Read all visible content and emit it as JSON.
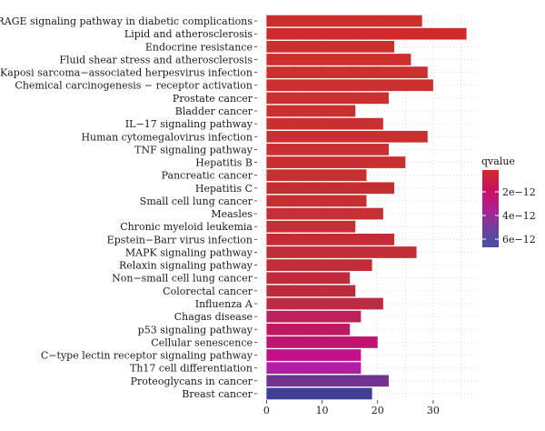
{
  "chart_data": {
    "type": "bar",
    "orientation": "horizontal",
    "categories": [
      "AGE−RAGE signaling pathway in diabetic complications",
      "Lipid and atherosclerosis",
      "Endocrine resistance",
      "Fluid shear stress and atherosclerosis",
      "Kaposi sarcoma−associated herpesvirus infection",
      "Chemical carcinogenesis − receptor activation",
      "Prostate cancer",
      "Bladder cancer",
      "IL−17 signaling pathway",
      "Human cytomegalovirus infection",
      "TNF signaling pathway",
      "Hepatitis B",
      "Pancreatic cancer",
      "Hepatitis C",
      "Small cell lung cancer",
      "Measles",
      "Chronic myeloid leukemia",
      "Epstein−Barr virus infection",
      "MAPK signaling pathway",
      "Relaxin signaling pathway",
      "Non−small cell lung cancer",
      "Colorectal cancer",
      "Influenza A",
      "Chagas disease",
      "p53 signaling pathway",
      "Cellular senescence",
      "C−type lectin receptor signaling pathway",
      "Th17 cell differentiation",
      "Proteoglycans in cancer",
      "Breast cancer"
    ],
    "values": [
      28,
      36,
      23,
      26,
      29,
      30,
      22,
      16,
      21,
      29,
      22,
      25,
      18,
      23,
      18,
      21,
      16,
      23,
      27,
      19,
      15,
      16,
      21,
      17,
      15,
      20,
      17,
      17,
      22,
      19
    ],
    "colors": [
      "#c9302c",
      "#d02b2b",
      "#cc2f2d",
      "#cc2f2d",
      "#cb2f2e",
      "#cb2f2e",
      "#c9302f",
      "#c9302f",
      "#c8302f",
      "#c8302f",
      "#c82f30",
      "#c82f30",
      "#c73031",
      "#c62f31",
      "#c62f32",
      "#c43033",
      "#c43033",
      "#c22e34",
      "#c12e35",
      "#c02d37",
      "#be2c3a",
      "#bd2c3c",
      "#bc2b45",
      "#bd1f58",
      "#be1a64",
      "#be1572",
      "#c2108c",
      "#b31da5",
      "#6f3490",
      "#3f3f93"
    ],
    "xticks": [
      0,
      10,
      20,
      30
    ],
    "xlim": [
      -1.7,
      37.7
    ],
    "xlabel": "",
    "ylabel": "",
    "grid": true,
    "legend": {
      "title": "qvalue",
      "ticks": [
        "2e−12",
        "4e−12",
        "6e−12"
      ],
      "placement": "right",
      "gradient": [
        "#d42a2a",
        "#c9105f",
        "#b01e90",
        "#6e3f9c",
        "#4a4fa2"
      ]
    }
  }
}
